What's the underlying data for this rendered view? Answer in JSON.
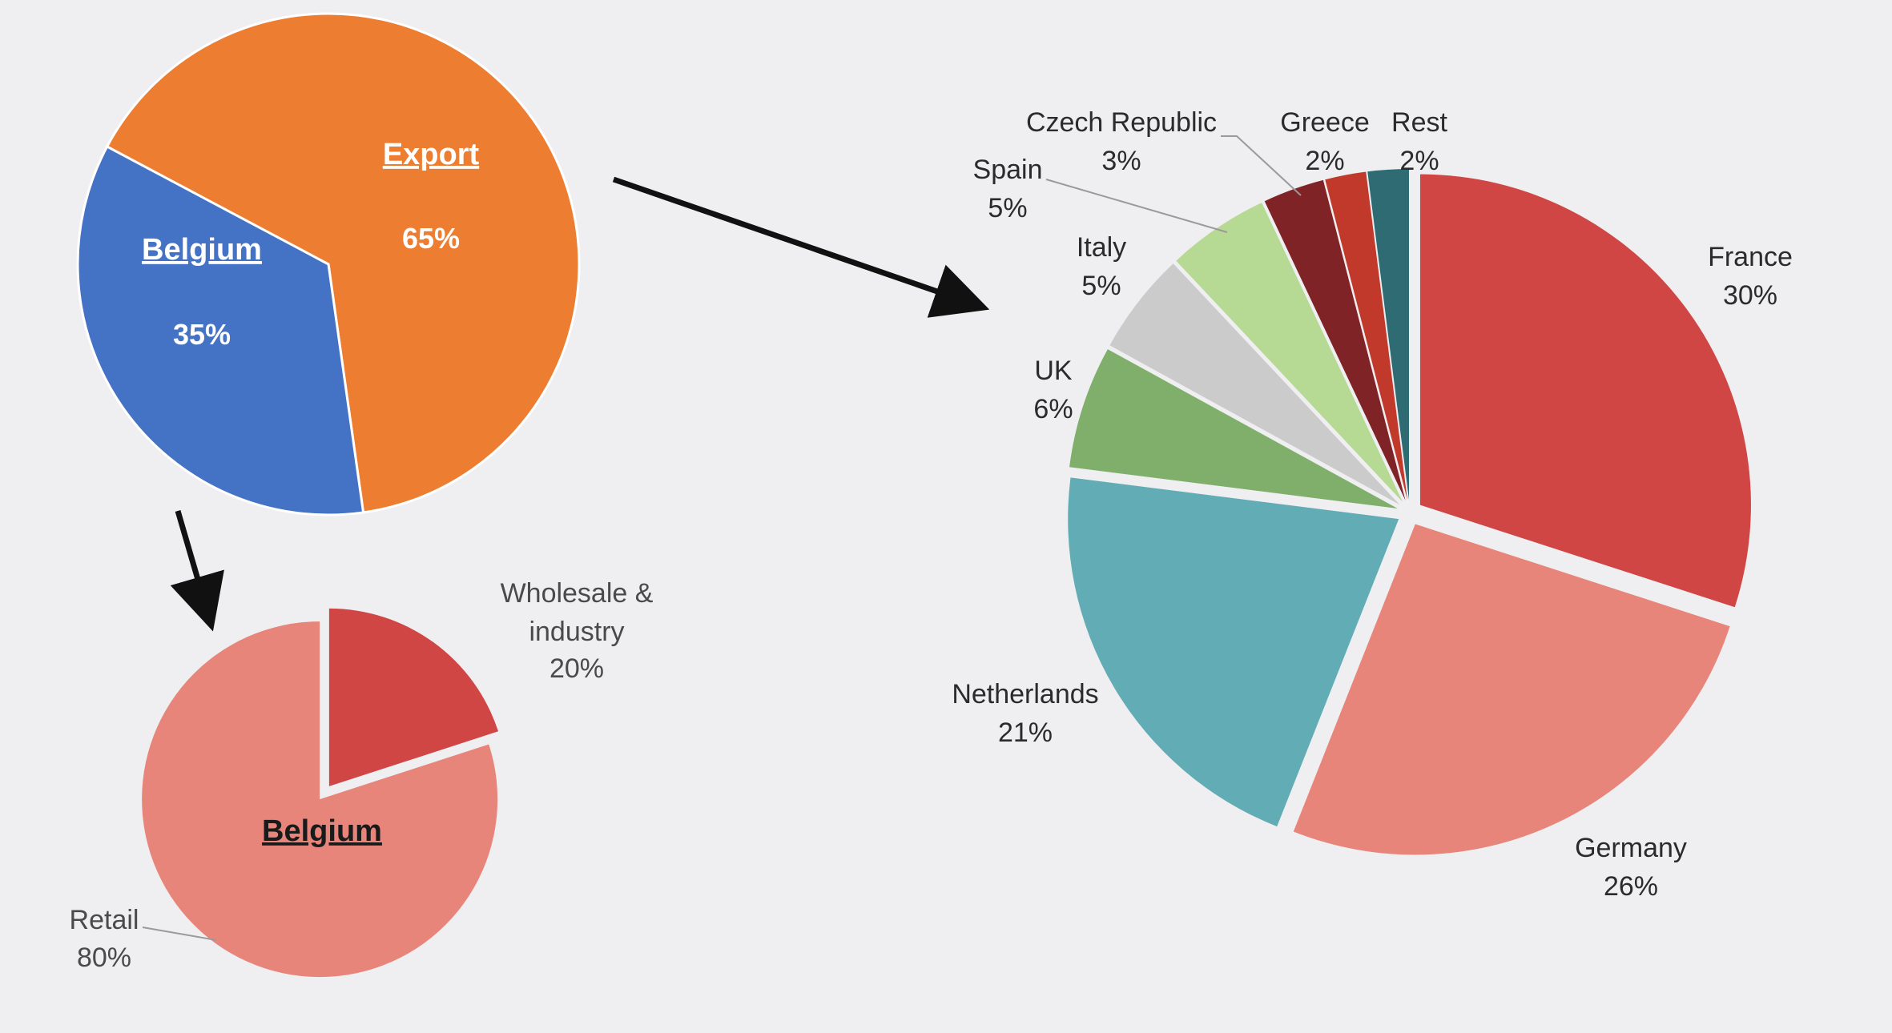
{
  "chart_data": [
    {
      "type": "pie",
      "id": "overview",
      "title": "",
      "slices": [
        {
          "label": "Export",
          "value": 65,
          "value_label": "65%",
          "color": "#ed7d31"
        },
        {
          "label": "Belgium",
          "value": 35,
          "value_label": "35%",
          "color": "#4472c4"
        }
      ]
    },
    {
      "type": "pie",
      "id": "belgium",
      "title": "Belgium",
      "slices": [
        {
          "label": "Wholesale &",
          "label2": "industry",
          "value": 20,
          "value_label": "20%",
          "color": "#cf4645"
        },
        {
          "label": "Retail",
          "value": 80,
          "value_label": "80%",
          "color": "#e8857a"
        }
      ]
    },
    {
      "type": "pie",
      "id": "export",
      "title": "",
      "slices": [
        {
          "label": "France",
          "value": 30,
          "value_label": "30%",
          "color": "#cf4645"
        },
        {
          "label": "Germany",
          "value": 26,
          "value_label": "26%",
          "color": "#e8857a"
        },
        {
          "label": "Netherlands",
          "value": 21,
          "value_label": "21%",
          "color": "#62adb5"
        },
        {
          "label": "UK",
          "value": 6,
          "value_label": "6%",
          "color": "#7faf6b"
        },
        {
          "label": "Italy",
          "value": 5,
          "value_label": "5%",
          "color": "#cbcbcb"
        },
        {
          "label": "Spain",
          "value": 5,
          "value_label": "5%",
          "color": "#b6d993"
        },
        {
          "label": "Czech Republic",
          "value": 3,
          "value_label": "3%",
          "color": "#7f2327"
        },
        {
          "label": "Greece",
          "value": 2,
          "value_label": "2%",
          "color": "#c0392b"
        },
        {
          "label": "Rest",
          "value": 2,
          "value_label": "2%",
          "color": "#2e6b73"
        }
      ]
    }
  ]
}
